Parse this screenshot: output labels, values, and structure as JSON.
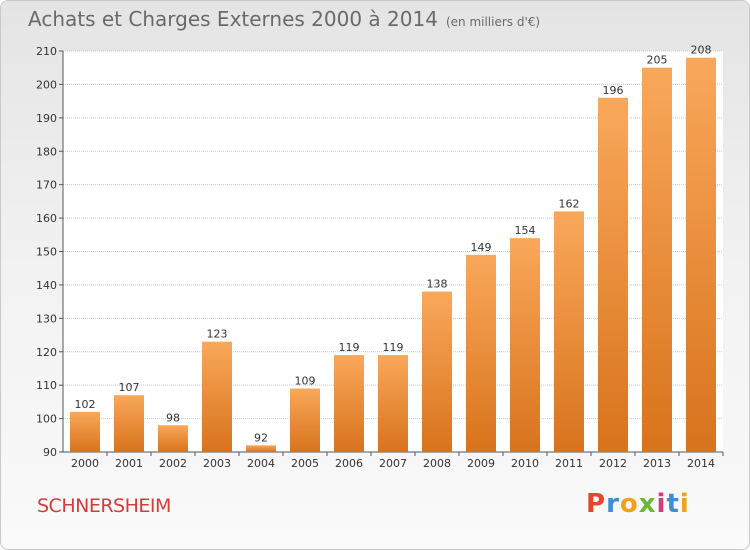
{
  "header": {
    "title": "Achats et Charges Externes 2000 à 2014",
    "subtitle": "(en milliers d'€)"
  },
  "footer": {
    "city": "SCHNERSHEIM",
    "logo": "Proxiti"
  },
  "colors": {
    "bar_light": "#f9a85a",
    "bar_dark": "#d8731c",
    "city": "#d53b3b",
    "logo_letters": [
      "#e8462b",
      "#3d8fd1",
      "#f2a21a",
      "#6bb834",
      "#d93a7a",
      "#3d8fd1",
      "#f2a21a"
    ]
  },
  "chart_data": {
    "type": "bar",
    "categories": [
      "2000",
      "2001",
      "2002",
      "2003",
      "2004",
      "2005",
      "2006",
      "2007",
      "2008",
      "2009",
      "2010",
      "2011",
      "2012",
      "2013",
      "2014"
    ],
    "values": [
      102,
      107,
      98,
      123,
      92,
      109,
      119,
      119,
      138,
      149,
      154,
      162,
      196,
      205,
      208
    ],
    "ylim": [
      90,
      210
    ],
    "yticks": [
      90,
      100,
      110,
      120,
      130,
      140,
      150,
      160,
      170,
      180,
      190,
      200,
      210
    ],
    "grid": true
  }
}
